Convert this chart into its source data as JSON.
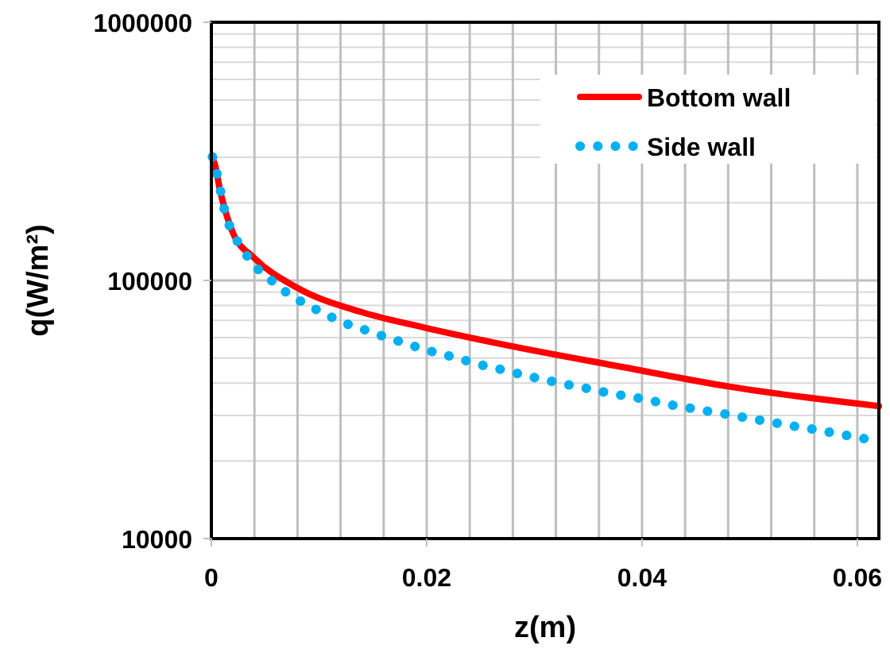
{
  "chart_data": {
    "type": "line",
    "xlabel": "z(m)",
    "ylabel": "q(W/m²)",
    "log": "y",
    "xlim": [
      0,
      0.062
    ],
    "ylim": [
      10000,
      1000000
    ],
    "xticks": [
      0,
      0.02,
      0.04,
      0.06
    ],
    "yticks": [
      10000,
      100000,
      1000000
    ],
    "grid": true,
    "legend": "top right",
    "marker": "none",
    "series": [
      {
        "name": "Bottom wall",
        "color": "#ff0000",
        "line_style": "solid",
        "x": [
          0,
          0.0003,
          0.0008,
          0.002,
          0.004,
          0.0079,
          0.0138,
          0.0197,
          0.027,
          0.0383,
          0.0481,
          0.062
        ],
        "values": [
          300000,
          284000,
          224000,
          153000,
          122000,
          94000,
          75700,
          65800,
          56600,
          46100,
          38800,
          32600
        ]
      },
      {
        "name": "Side wall",
        "color": "#00b0f0",
        "line_style": "dotted",
        "x": [
          0.0001,
          0.0005,
          0.0009,
          0.0013,
          0.002,
          0.003,
          0.0042,
          0.0057,
          0.0072,
          0.0089,
          0.0106,
          0.0124,
          0.0143,
          0.0161,
          0.018,
          0.0198,
          0.0217,
          0.0235,
          0.0253,
          0.0272,
          0.029,
          0.031,
          0.0328,
          0.0347,
          0.0367,
          0.0386,
          0.0405,
          0.0423,
          0.0443,
          0.0462,
          0.0481,
          0.05,
          0.0519,
          0.0538,
          0.0557,
          0.0577,
          0.0597,
          0.0615
        ],
        "values": [
          301000,
          261000,
          217000,
          181000,
          153000,
          130000,
          112000,
          99000,
          88500,
          80500,
          74000,
          68300,
          64300,
          60500,
          57100,
          54000,
          51500,
          49100,
          46800,
          44900,
          43000,
          41200,
          39700,
          38300,
          36800,
          35600,
          34500,
          33200,
          32100,
          31100,
          30200,
          29200,
          28300,
          27400,
          26600,
          25700,
          24800,
          24000
        ]
      }
    ]
  }
}
